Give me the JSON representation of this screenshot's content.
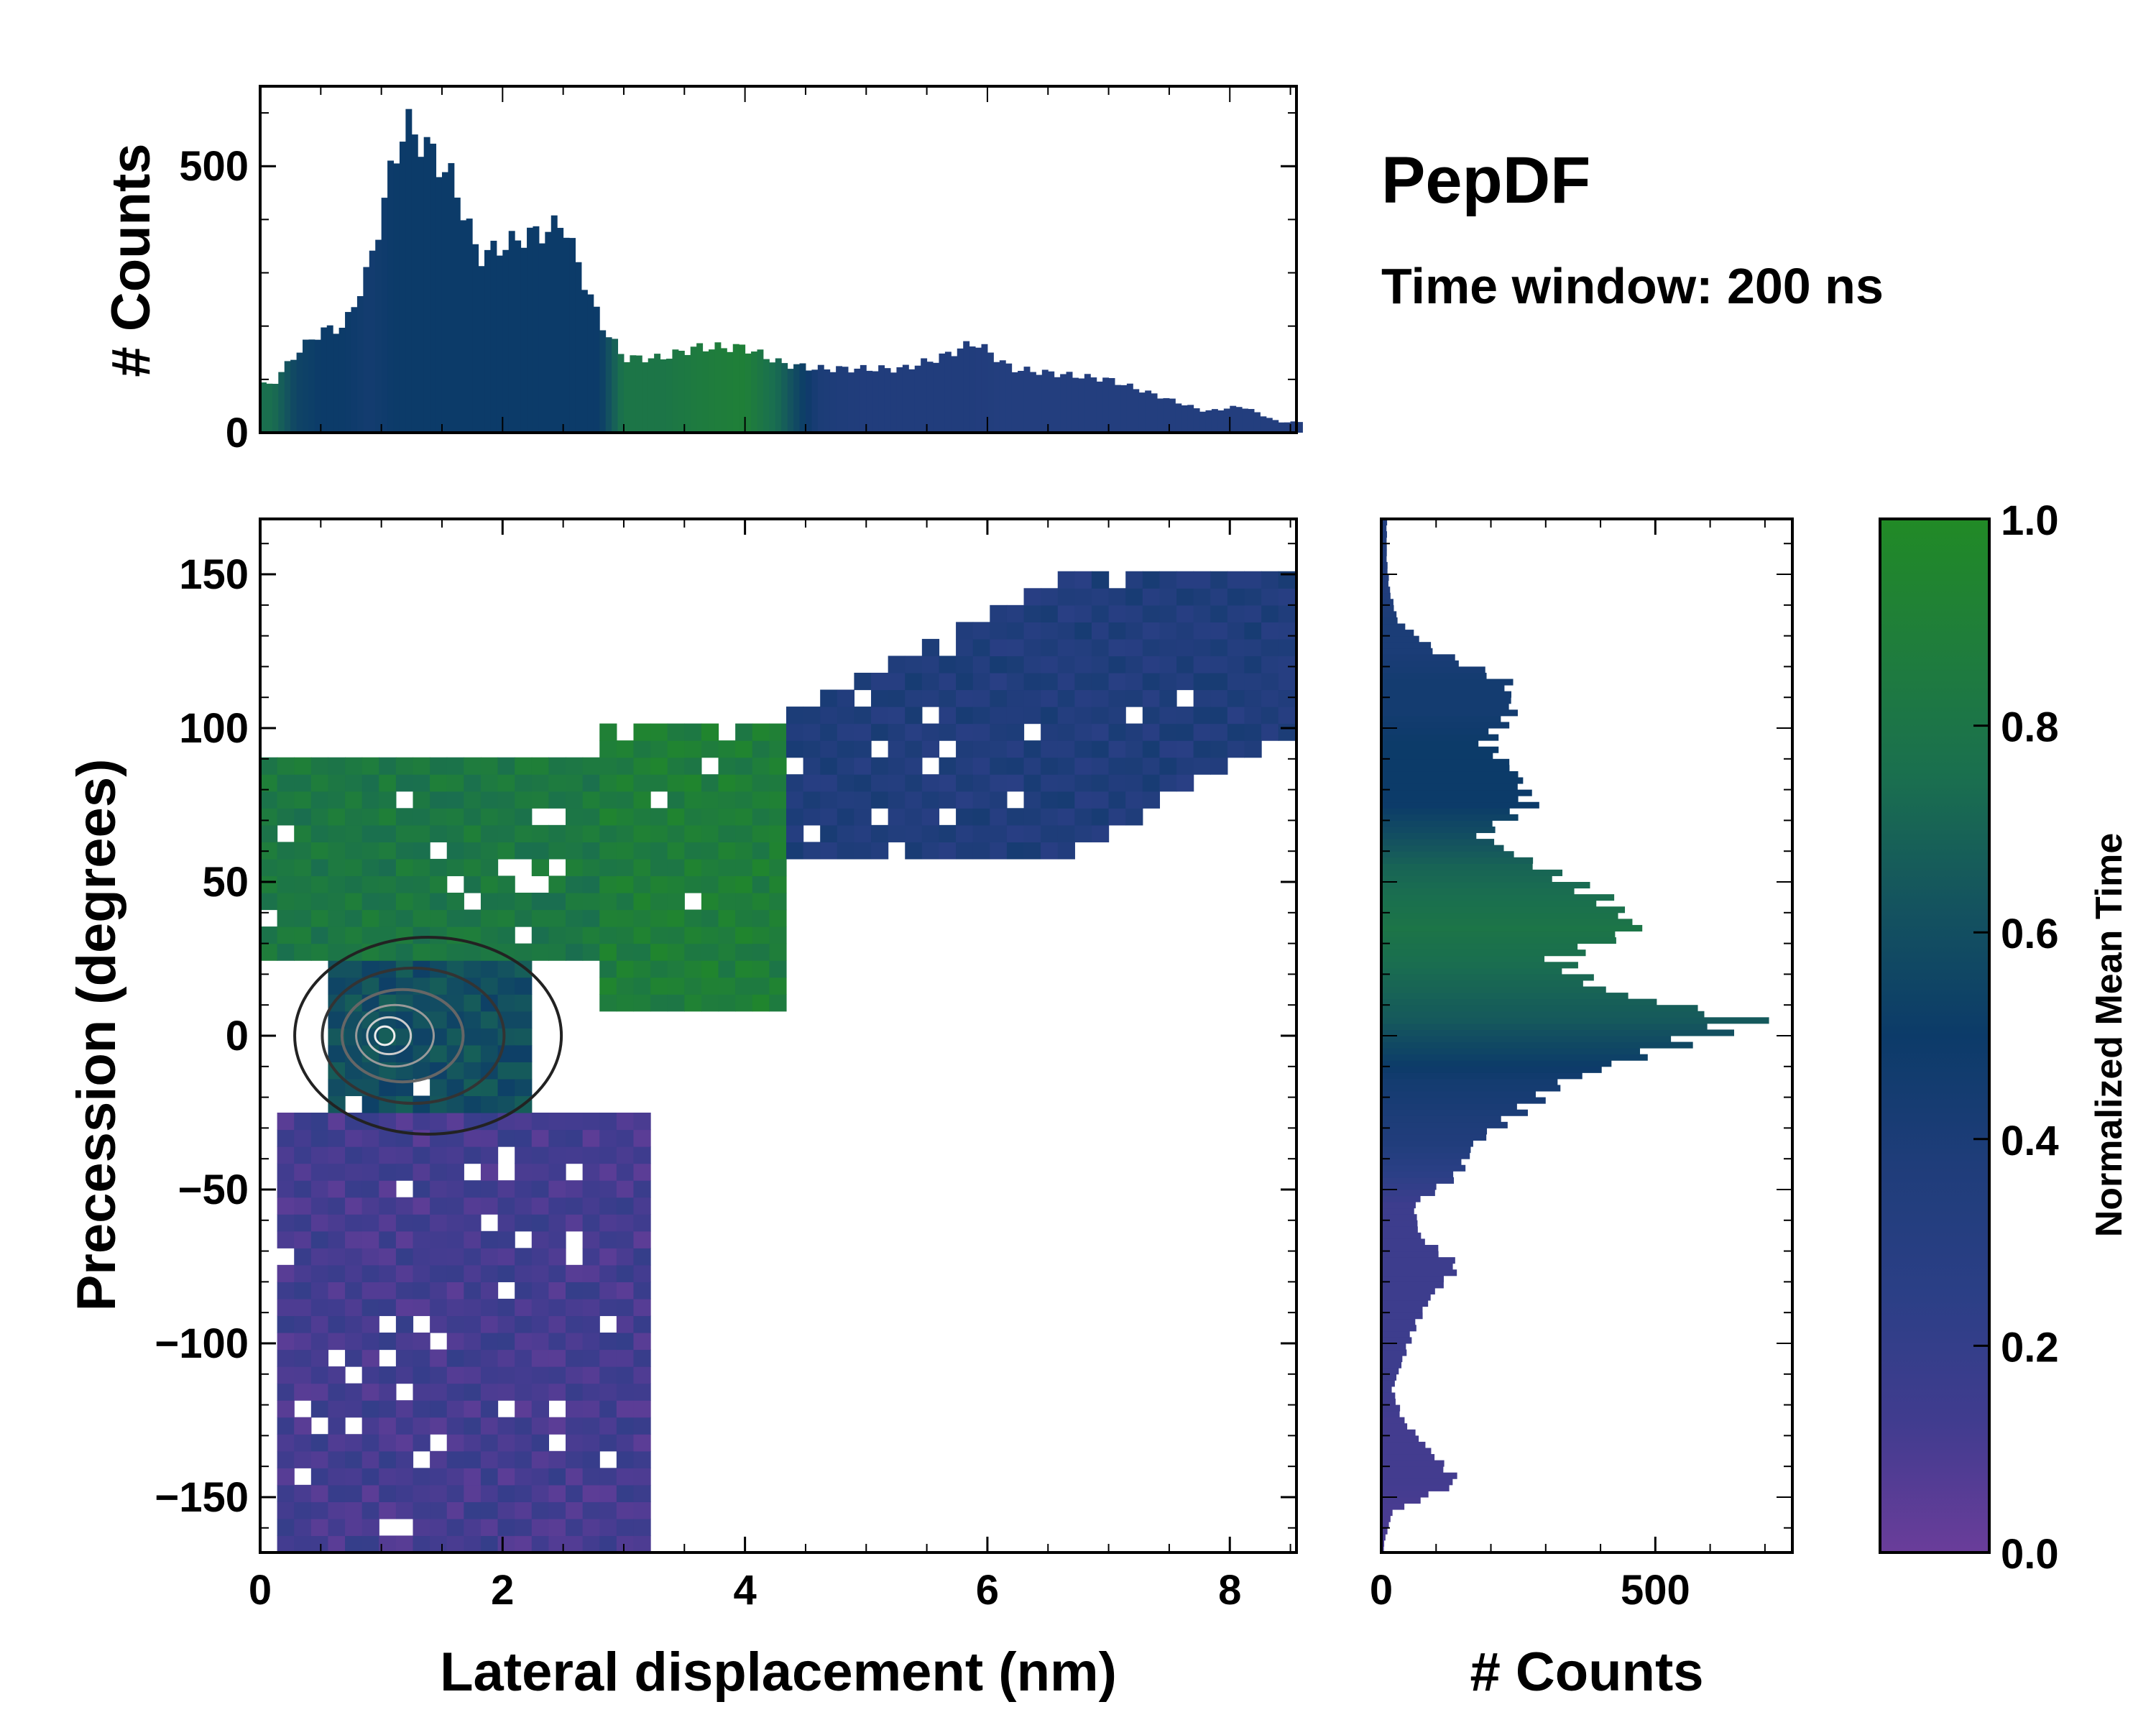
{
  "chart_data": [
    {
      "id": "main",
      "type": "heatmap",
      "title": "PepDF",
      "subtitle": "Time window: 200 ns",
      "xlabel": "Lateral displacement (nm)",
      "ylabel": "Precession (degrees)",
      "xlim": [
        0,
        8.55
      ],
      "ylim": [
        -168,
        168
      ],
      "xticks": [
        0,
        2,
        4,
        6,
        8
      ],
      "xtick_labels": [
        "0",
        "2",
        "4",
        "6",
        "8"
      ],
      "yticks": [
        150,
        100,
        50,
        0,
        -50,
        -100,
        -150
      ],
      "ytick_labels": [
        "150",
        "100",
        "50",
        "0",
        "−50",
        "−100",
        "−150"
      ],
      "color_meaning": "Normalized Mean Time",
      "regions": [
        {
          "name": "diagonal band (upper right)",
          "x_range": [
            4.4,
            8.5
          ],
          "y_range": [
            60,
            150
          ],
          "mean_time": 0.35
        },
        {
          "name": "green ridge",
          "x_range": [
            2.8,
            4.4
          ],
          "y_range": [
            10,
            100
          ],
          "mean_time": 0.88
        },
        {
          "name": "upper-left green lobe",
          "x_range": [
            0,
            2.8
          ],
          "y_range": [
            25,
            90
          ],
          "mean_time": 0.82
        },
        {
          "name": "central density peak",
          "x_range": [
            0.5,
            2.2
          ],
          "y_range": [
            -25,
            25
          ],
          "mean_time": 0.6
        },
        {
          "name": "lower purple tail",
          "x_range": [
            0.2,
            3.2
          ],
          "y_range": [
            -168,
            -25
          ],
          "mean_time": 0.12
        }
      ],
      "density_maximum": {
        "x": 1.0,
        "y": 0
      }
    },
    {
      "id": "top-marginal",
      "type": "bar",
      "ylabel": "# Counts",
      "ylim": [
        0,
        650
      ],
      "yticks": [
        0,
        500
      ],
      "ytick_labels": [
        "0",
        "500"
      ],
      "x": [
        0.1,
        0.3,
        0.5,
        0.7,
        0.9,
        1.1,
        1.2,
        1.4,
        1.6,
        1.8,
        2.0,
        2.2,
        2.4,
        2.5,
        2.6,
        2.8,
        3.0,
        3.3,
        3.6,
        4.0,
        4.3,
        4.6,
        5.0,
        5.3,
        5.6,
        5.9,
        6.2,
        6.6,
        7.0,
        7.4,
        7.8,
        8.1,
        8.4
      ],
      "values": [
        90,
        150,
        190,
        200,
        310,
        510,
        580,
        530,
        470,
        330,
        350,
        370,
        380,
        400,
        330,
        210,
        140,
        140,
        160,
        160,
        130,
        120,
        120,
        120,
        140,
        170,
        120,
        110,
        100,
        70,
        40,
        50,
        20
      ],
      "mean_time": [
        0.75,
        0.55,
        0.5,
        0.5,
        0.45,
        0.5,
        0.5,
        0.5,
        0.5,
        0.5,
        0.5,
        0.5,
        0.5,
        0.5,
        0.5,
        0.5,
        0.8,
        0.8,
        0.85,
        0.9,
        0.7,
        0.4,
        0.35,
        0.35,
        0.35,
        0.35,
        0.33,
        0.33,
        0.33,
        0.33,
        0.33,
        0.33,
        0.33
      ]
    },
    {
      "id": "right-marginal",
      "type": "bar",
      "orientation": "horizontal",
      "xlabel": "# Counts",
      "xlim": [
        0,
        750
      ],
      "xticks": [
        0,
        500
      ],
      "xtick_labels": [
        "0",
        "500"
      ],
      "y": [
        155,
        145,
        135,
        125,
        115,
        105,
        95,
        85,
        75,
        65,
        55,
        45,
        35,
        25,
        15,
        5,
        -5,
        -15,
        -25,
        -35,
        -45,
        -55,
        -65,
        -75,
        -85,
        -95,
        -105,
        -115,
        -125,
        -135,
        -145,
        -155,
        -165
      ],
      "values": [
        10,
        15,
        30,
        100,
        230,
        240,
        190,
        250,
        270,
        180,
        290,
        400,
        470,
        320,
        400,
        670,
        500,
        330,
        250,
        170,
        140,
        60,
        70,
        140,
        90,
        60,
        40,
        20,
        40,
        90,
        140,
        20,
        5
      ],
      "mean_time": [
        0.35,
        0.35,
        0.4,
        0.4,
        0.45,
        0.45,
        0.5,
        0.5,
        0.5,
        0.6,
        0.7,
        0.75,
        0.8,
        0.75,
        0.7,
        0.65,
        0.55,
        0.45,
        0.4,
        0.35,
        0.25,
        0.15,
        0.15,
        0.15,
        0.15,
        0.15,
        0.15,
        0.15,
        0.12,
        0.12,
        0.12,
        0.1,
        0.1
      ]
    },
    {
      "id": "colorbar",
      "type": "colorbar",
      "label": "Normalized Mean Time",
      "range": [
        0,
        1
      ],
      "ticks": [
        0.0,
        0.2,
        0.4,
        0.6,
        0.8,
        1.0
      ],
      "tick_labels": [
        "0.0",
        "0.2",
        "0.4",
        "0.6",
        "0.8",
        "1.0"
      ],
      "colors": [
        "#6a3d9a",
        "#413c8f",
        "#2b3f86",
        "#1f3d7a",
        "#0c3b69",
        "#14535f",
        "#1a6f4f",
        "#1f7d3c",
        "#218a26"
      ]
    }
  ]
}
